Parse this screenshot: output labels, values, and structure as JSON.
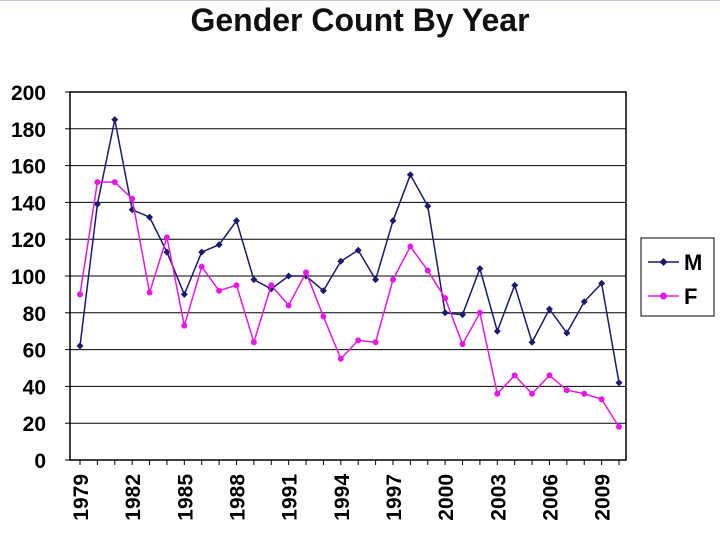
{
  "chart_data": {
    "type": "line",
    "title": "Gender Count By Year",
    "x": [
      1979,
      1980,
      1981,
      1982,
      1983,
      1984,
      1985,
      1986,
      1987,
      1988,
      1989,
      1990,
      1991,
      1992,
      1993,
      1994,
      1995,
      1996,
      1997,
      1998,
      1999,
      2000,
      2001,
      2002,
      2003,
      2004,
      2005,
      2006,
      2007,
      2008,
      2009,
      2010
    ],
    "x_tick_labels": [
      "1979",
      "1982",
      "1985",
      "1988",
      "1991",
      "1994",
      "1997",
      "2000",
      "2003",
      "2006",
      "2009"
    ],
    "y_ticks": [
      "0",
      "20",
      "40",
      "60",
      "80",
      "100",
      "120",
      "140",
      "160",
      "180",
      "200"
    ],
    "ylim": [
      0,
      200
    ],
    "grid": true,
    "legend_position": "right",
    "series": [
      {
        "name": "M",
        "color": "#1a1a6e",
        "marker": "diamond",
        "values": [
          62,
          139,
          185,
          136,
          132,
          113,
          90,
          113,
          117,
          130,
          98,
          93,
          100,
          100,
          92,
          108,
          114,
          98,
          130,
          155,
          138,
          80,
          79,
          104,
          70,
          95,
          64,
          82,
          69,
          86,
          96,
          42
        ]
      },
      {
        "name": "F",
        "color": "#e619e6",
        "marker": "circle",
        "values": [
          90,
          151,
          151,
          142,
          91,
          121,
          73,
          105,
          92,
          95,
          64,
          95,
          84,
          102,
          78,
          55,
          65,
          64,
          98,
          116,
          103,
          88,
          63,
          80,
          36,
          46,
          36,
          46,
          38,
          36,
          33,
          18
        ]
      }
    ]
  }
}
